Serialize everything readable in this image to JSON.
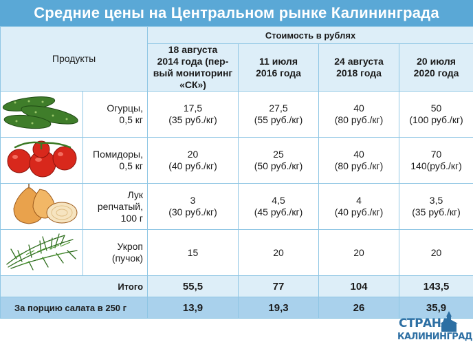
{
  "title": "Средние цены на Центральном рынке Калининграда",
  "header": {
    "products": "Продукты",
    "currency": "Стоимость в рублях",
    "dates": [
      [
        "18 августа",
        "2014 года (пер-",
        "вый мониторинг",
        "«СК»)"
      ],
      [
        "11 июля",
        "2016 года"
      ],
      [
        "24 августа",
        "2018 года"
      ],
      [
        "20 июля",
        "2020 года"
      ]
    ]
  },
  "rows": [
    {
      "icon": "cucumbers",
      "name": [
        "Огурцы,",
        "0,5 кг"
      ],
      "values": [
        [
          "17,5",
          "(35 руб./кг)"
        ],
        [
          "27,5",
          "(55 руб./кг)"
        ],
        [
          "40",
          "(80 руб./кг)"
        ],
        [
          "50",
          "(100 руб./кг)"
        ]
      ]
    },
    {
      "icon": "tomatoes",
      "name": [
        "Помидоры,",
        "0,5 кг"
      ],
      "values": [
        [
          "20",
          "(40 руб./кг)"
        ],
        [
          "25",
          "(50 руб./кг)"
        ],
        [
          "40",
          "(80 руб./кг)"
        ],
        [
          "70",
          "140(руб./кг)"
        ]
      ]
    },
    {
      "icon": "onions",
      "name": [
        "Лук репчатый,",
        "100 г"
      ],
      "values": [
        [
          "3",
          "(30 руб./кг)"
        ],
        [
          "4,5",
          "(45 руб./кг)"
        ],
        [
          "4",
          "(40 руб./кг)"
        ],
        [
          "3,5",
          "(35 руб./кг)"
        ]
      ]
    },
    {
      "icon": "dill",
      "name": [
        "Укроп",
        "(пучок)"
      ],
      "values": [
        [
          "15"
        ],
        [
          "20"
        ],
        [
          "20"
        ],
        [
          "20"
        ]
      ]
    }
  ],
  "total": {
    "label": "Итого",
    "values": [
      "55,5",
      "77",
      "104",
      "143,5"
    ]
  },
  "portion": {
    "label": "За порцию салата в 250 г",
    "values": [
      "13,9",
      "19,3",
      "26",
      "35,9"
    ]
  },
  "logo": {
    "line1": "СТРАНА",
    "line2": "КАЛИНИНГРАД"
  },
  "colors": {
    "title_bg": "#5aa8d6",
    "header_bg": "#ddeef8",
    "portion_bg": "#a9d1ec",
    "border": "#8fc6e4",
    "logo": "#2d6fa3"
  }
}
